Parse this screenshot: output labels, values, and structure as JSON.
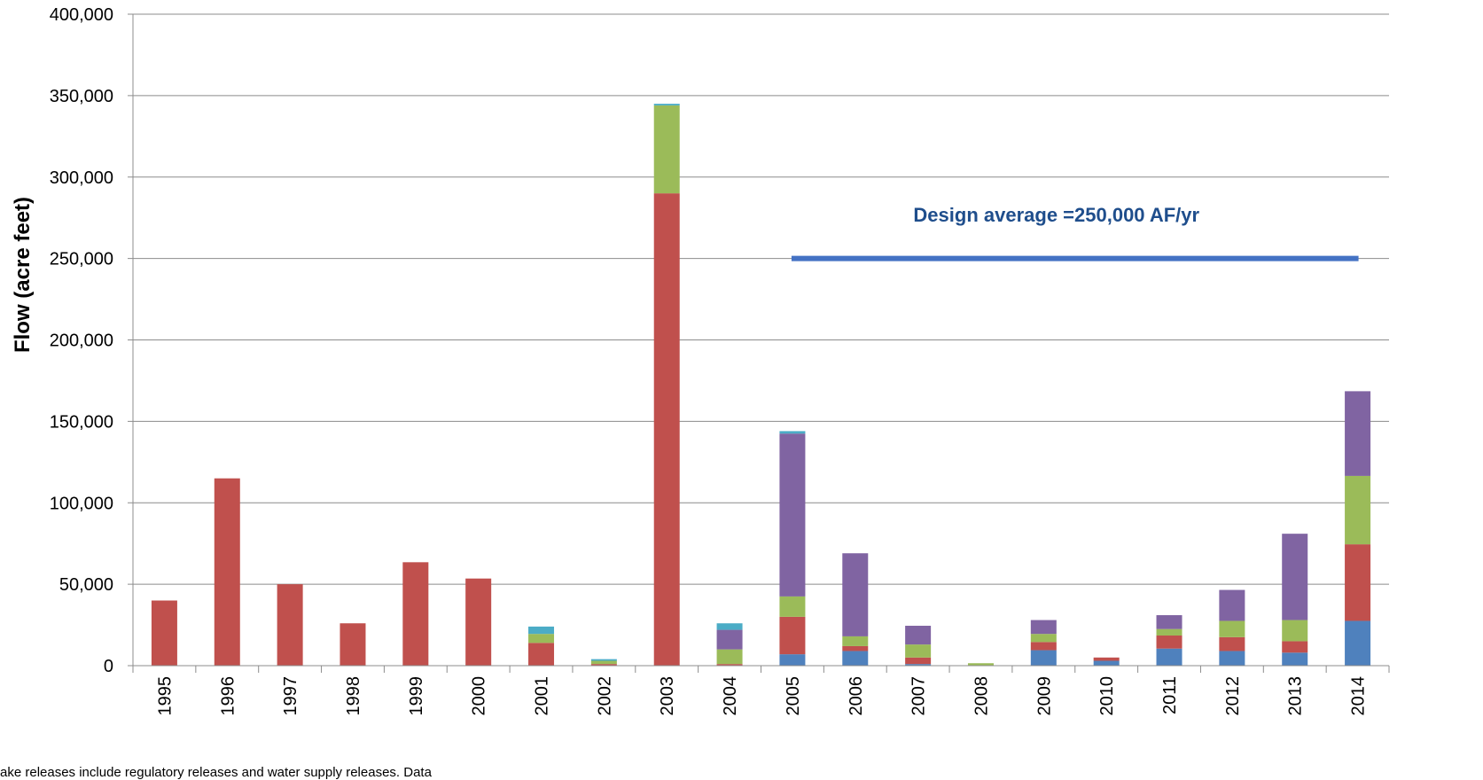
{
  "chart_data": {
    "type": "bar",
    "stacked": true,
    "ylabel": "Flow (acre feet)",
    "xlabel": "",
    "ylim": [
      0,
      400000
    ],
    "yticks": [
      0,
      50000,
      100000,
      150000,
      200000,
      250000,
      300000,
      350000,
      400000
    ],
    "ytick_labels": [
      "0",
      "50,000",
      "100,000",
      "150,000",
      "200,000",
      "250,000",
      "300,000",
      "350,000",
      "400,000"
    ],
    "grid": true,
    "categories": [
      "1995",
      "1996",
      "1997",
      "1998",
      "1999",
      "2000",
      "2001",
      "2002",
      "2003",
      "2004",
      "2005",
      "2006",
      "2007",
      "2008",
      "2009",
      "2010",
      "2011",
      "2012",
      "2013",
      "2014"
    ],
    "series": [
      {
        "color": "#4f81bd",
        "values": [
          0,
          0,
          0,
          0,
          0,
          0,
          0,
          0,
          0,
          0,
          7000,
          9000,
          1000,
          0,
          9500,
          3000,
          10500,
          9000,
          8000,
          27500
        ]
      },
      {
        "color": "#c0504d",
        "values": [
          40000,
          115000,
          50000,
          26000,
          63500,
          53500,
          14000,
          1000,
          290000,
          1000,
          23000,
          3000,
          4000,
          0,
          5000,
          2000,
          8000,
          8500,
          7000,
          47000
        ]
      },
      {
        "color": "#9bbb59",
        "values": [
          0,
          0,
          0,
          0,
          0,
          0,
          5500,
          2000,
          54000,
          9000,
          12500,
          6000,
          8000,
          1500,
          5000,
          0,
          4000,
          10000,
          13000,
          42000
        ]
      },
      {
        "color": "#8064a2",
        "values": [
          0,
          0,
          0,
          0,
          0,
          0,
          0,
          0,
          0,
          12000,
          100000,
          51000,
          11500,
          0,
          8500,
          0,
          8500,
          19000,
          53000,
          52000
        ]
      },
      {
        "color": "#4bacc6",
        "values": [
          0,
          0,
          0,
          0,
          0,
          0,
          4500,
          1000,
          1000,
          4000,
          1500,
          0,
          0,
          0,
          0,
          0,
          0,
          0,
          0,
          0
        ]
      }
    ],
    "annotations": [
      {
        "text": "Design average =250,000 AF/yr",
        "value": 250000,
        "from_category": "2005",
        "to_category": "2014",
        "color": "#4472c4"
      }
    ]
  },
  "footnote": "ake releases include regulatory releases and water supply releases.  Data"
}
